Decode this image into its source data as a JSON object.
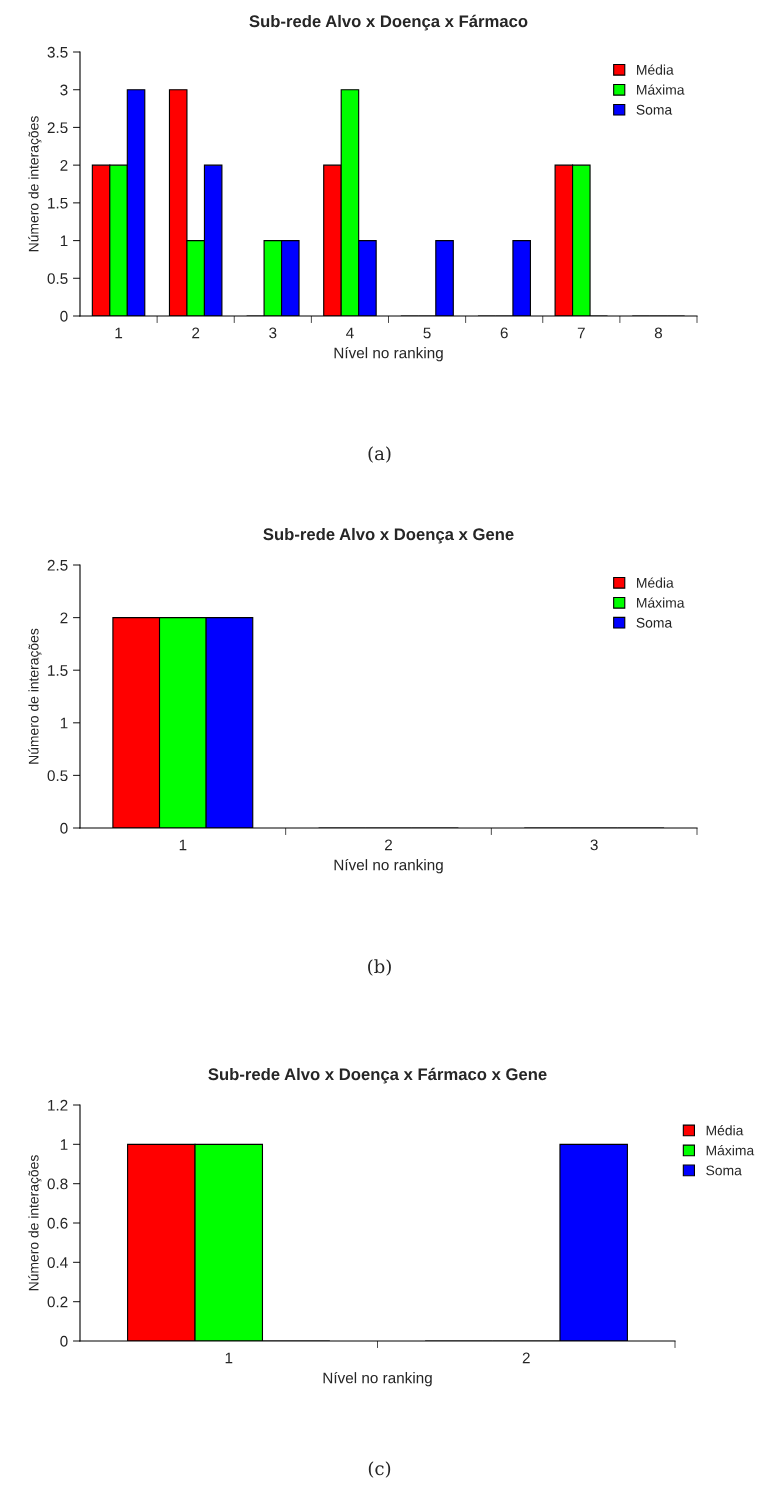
{
  "chart_data": [
    {
      "type": "bar",
      "title": "Sub-rede Alvo x Doença x Fármaco",
      "xlabel": "Nível no ranking",
      "ylabel": "Número de interações",
      "categories": [
        "1",
        "2",
        "3",
        "4",
        "5",
        "6",
        "7",
        "8"
      ],
      "series": [
        {
          "name": "Média",
          "color": "#ff0000",
          "values": [
            2,
            3,
            0,
            2,
            0,
            0,
            2,
            0
          ]
        },
        {
          "name": "Máxima",
          "color": "#00ff00",
          "values": [
            2,
            1,
            1,
            3,
            0,
            0,
            2,
            0
          ]
        },
        {
          "name": "Soma",
          "color": "#0000ff",
          "values": [
            3,
            2,
            1,
            1,
            1,
            1,
            0,
            0
          ]
        }
      ],
      "ylim": [
        0,
        3.5
      ],
      "yticks": [
        0,
        0.5,
        1,
        1.5,
        2,
        2.5,
        3,
        3.5
      ],
      "grid": false,
      "legend": "top right",
      "annotations": [
        "(a)"
      ]
    },
    {
      "type": "bar",
      "title": "Sub-rede Alvo x Doença x Gene",
      "xlabel": "Nível no ranking",
      "ylabel": "Número de interações",
      "categories": [
        "1",
        "2",
        "3"
      ],
      "series": [
        {
          "name": "Média",
          "color": "#ff0000",
          "values": [
            2,
            0,
            0
          ]
        },
        {
          "name": "Máxima",
          "color": "#00ff00",
          "values": [
            2,
            0,
            0
          ]
        },
        {
          "name": "Soma",
          "color": "#0000ff",
          "values": [
            2,
            0,
            0
          ]
        }
      ],
      "ylim": [
        0,
        2.5
      ],
      "yticks": [
        0,
        0.5,
        1,
        1.5,
        2,
        2.5
      ],
      "grid": false,
      "legend": "top right",
      "annotations": [
        "(b)"
      ]
    },
    {
      "type": "bar",
      "title": "Sub-rede Alvo x Doença x Fármaco x Gene",
      "xlabel": "Nível no ranking",
      "ylabel": "Número de interações",
      "categories": [
        "1",
        "2"
      ],
      "series": [
        {
          "name": "Média",
          "color": "#ff0000",
          "values": [
            1,
            0
          ]
        },
        {
          "name": "Máxima",
          "color": "#00ff00",
          "values": [
            1,
            0
          ]
        },
        {
          "name": "Soma",
          "color": "#0000ff",
          "values": [
            0,
            1
          ]
        }
      ],
      "ylim": [
        0,
        1.2
      ],
      "yticks": [
        0,
        0.2,
        0.4,
        0.6,
        0.8,
        1,
        1.2
      ],
      "grid": false,
      "legend": "right",
      "annotations": [
        "(c)"
      ]
    }
  ]
}
